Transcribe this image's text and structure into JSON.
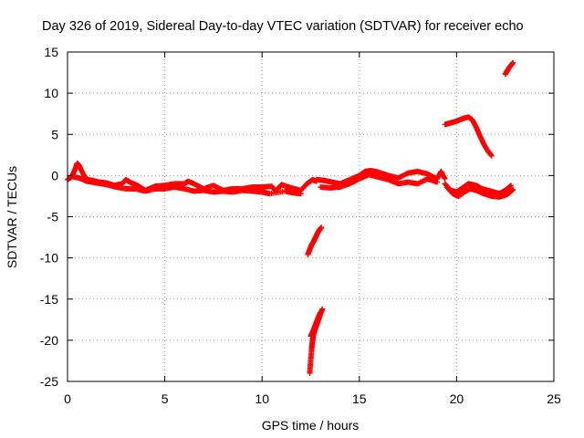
{
  "chart_data": {
    "type": "scatter",
    "title": "Day 326 of 2019, Sidereal Day-to-day VTEC variation (SDTVAR) for receiver echo",
    "xlabel": "GPS time / hours",
    "ylabel": "SDTVAR / TECUs",
    "xlim": [
      0,
      25
    ],
    "ylim": [
      -25,
      15
    ],
    "xticks": [
      0,
      5,
      10,
      15,
      20,
      25
    ],
    "yticks": [
      -25,
      -20,
      -15,
      -10,
      -5,
      0,
      5,
      10,
      15
    ],
    "grid": true,
    "marker": "plus",
    "color": "#ff0000",
    "series": [
      {
        "name": "baseline",
        "x": [
          0.0,
          0.2,
          0.4,
          0.5,
          0.6,
          0.8,
          1.0,
          1.3,
          1.6,
          2.0,
          2.4,
          2.8,
          3.0,
          3.2,
          3.6,
          4.0,
          4.5,
          5.0,
          5.5,
          6.0,
          6.2,
          6.5,
          7.0,
          7.5,
          8.0,
          8.5,
          9.0,
          9.5,
          10.0,
          10.5,
          10.7,
          11.0,
          11.5,
          12.0,
          12.3,
          12.6,
          12.8
        ],
        "y": [
          -0.5,
          -0.2,
          0.8,
          1.5,
          1.2,
          0.2,
          -0.5,
          -0.6,
          -0.8,
          -0.9,
          -1.2,
          -1.0,
          -0.5,
          -0.8,
          -1.2,
          -1.8,
          -1.3,
          -1.2,
          -1.0,
          -1.0,
          -0.7,
          -1.0,
          -1.6,
          -1.2,
          -1.8,
          -1.6,
          -1.6,
          -1.4,
          -1.4,
          -1.3,
          -1.9,
          -1.1,
          -1.5,
          -1.8,
          -1.0,
          -0.5,
          -0.7
        ]
      },
      {
        "name": "baseline-lower",
        "x": [
          0.2,
          0.6,
          1.0,
          1.5,
          2.0,
          2.5,
          3.0,
          3.5,
          4.0,
          4.5,
          5.0,
          5.5,
          6.0,
          6.5,
          7.0,
          7.5,
          8.0,
          8.5,
          9.0,
          9.5,
          10.0,
          10.4,
          11.2,
          11.6,
          12.0
        ],
        "y": [
          -0.1,
          -0.3,
          -0.7,
          -0.9,
          -1.1,
          -1.4,
          -1.6,
          -1.6,
          -1.9,
          -1.6,
          -1.6,
          -1.4,
          -1.6,
          -1.9,
          -1.8,
          -2.0,
          -1.9,
          -2.0,
          -1.8,
          -1.9,
          -2.0,
          -2.2,
          -1.9,
          -2.1,
          -2.2
        ]
      },
      {
        "name": "mid-upper",
        "x": [
          12.8,
          13.2,
          13.6,
          14.0,
          14.5,
          15.0,
          15.3,
          15.6,
          16.0,
          16.5,
          17.0,
          17.5,
          18.0,
          18.5,
          19.0,
          19.2,
          19.4
        ],
        "y": [
          -0.5,
          -0.6,
          -0.8,
          -1.0,
          -0.5,
          0.0,
          0.5,
          0.6,
          0.4,
          0.0,
          -0.3,
          0.3,
          0.5,
          0.2,
          -0.4,
          0.5,
          -0.4
        ]
      },
      {
        "name": "mid-lower",
        "x": [
          13.0,
          13.5,
          14.0,
          14.5,
          15.0,
          15.5,
          16.0,
          16.5,
          17.0,
          17.5,
          18.0,
          18.5,
          19.0
        ],
        "y": [
          -1.4,
          -1.5,
          -1.4,
          -1.0,
          -0.4,
          0.1,
          -0.2,
          -0.5,
          -1.0,
          -0.8,
          -1.0,
          -0.4,
          -0.8
        ]
      },
      {
        "name": "late",
        "x": [
          19.4,
          19.7,
          20.0,
          20.3,
          20.6,
          21.0,
          21.3,
          21.6,
          21.9,
          22.2,
          22.5,
          22.8
        ],
        "y": [
          -1.0,
          -1.8,
          -2.0,
          -1.5,
          -1.0,
          -1.2,
          -1.6,
          -1.8,
          -2.0,
          -2.2,
          -1.8,
          -1.2
        ]
      },
      {
        "name": "late-lower",
        "x": [
          19.5,
          19.8,
          20.1,
          20.4,
          20.7,
          21.0,
          21.4,
          21.8,
          22.2,
          22.6,
          22.9
        ],
        "y": [
          -1.4,
          -2.2,
          -2.5,
          -2.0,
          -1.6,
          -1.8,
          -2.2,
          -2.5,
          -2.6,
          -2.3,
          -1.7
        ]
      },
      {
        "name": "drop-segment-1",
        "x": [
          12.35,
          12.45,
          12.55,
          12.65,
          12.75,
          12.85,
          12.95,
          13.05
        ],
        "y": [
          -9.6,
          -9.0,
          -8.4,
          -8.0,
          -7.5,
          -7.0,
          -6.6,
          -6.3
        ]
      },
      {
        "name": "drop-segment-2",
        "x": [
          12.45,
          12.5,
          12.55,
          12.6,
          12.65,
          12.7,
          12.8,
          12.9,
          13.0,
          13.1
        ],
        "y": [
          -24.0,
          -22.5,
          -21.0,
          -20.0,
          -19.2,
          -18.8,
          -18.2,
          -17.5,
          -16.8,
          -16.2
        ]
      },
      {
        "name": "drop-segment-2b",
        "x": [
          12.5,
          12.6,
          12.7,
          12.8,
          12.9,
          13.0
        ],
        "y": [
          -19.5,
          -19.0,
          -18.4,
          -17.8,
          -17.2,
          -16.6
        ]
      },
      {
        "name": "rise-segment",
        "x": [
          19.4,
          19.7,
          20.0,
          20.3,
          20.6,
          20.8,
          21.0,
          21.2,
          21.4,
          21.6,
          21.8
        ],
        "y": [
          6.2,
          6.4,
          6.6,
          6.9,
          7.1,
          6.8,
          5.9,
          4.8,
          3.8,
          3.0,
          2.4
        ]
      },
      {
        "name": "high-segment",
        "x": [
          22.5,
          22.6,
          22.7,
          22.8,
          22.9
        ],
        "y": [
          12.3,
          12.7,
          13.1,
          13.4,
          13.7
        ]
      }
    ]
  }
}
